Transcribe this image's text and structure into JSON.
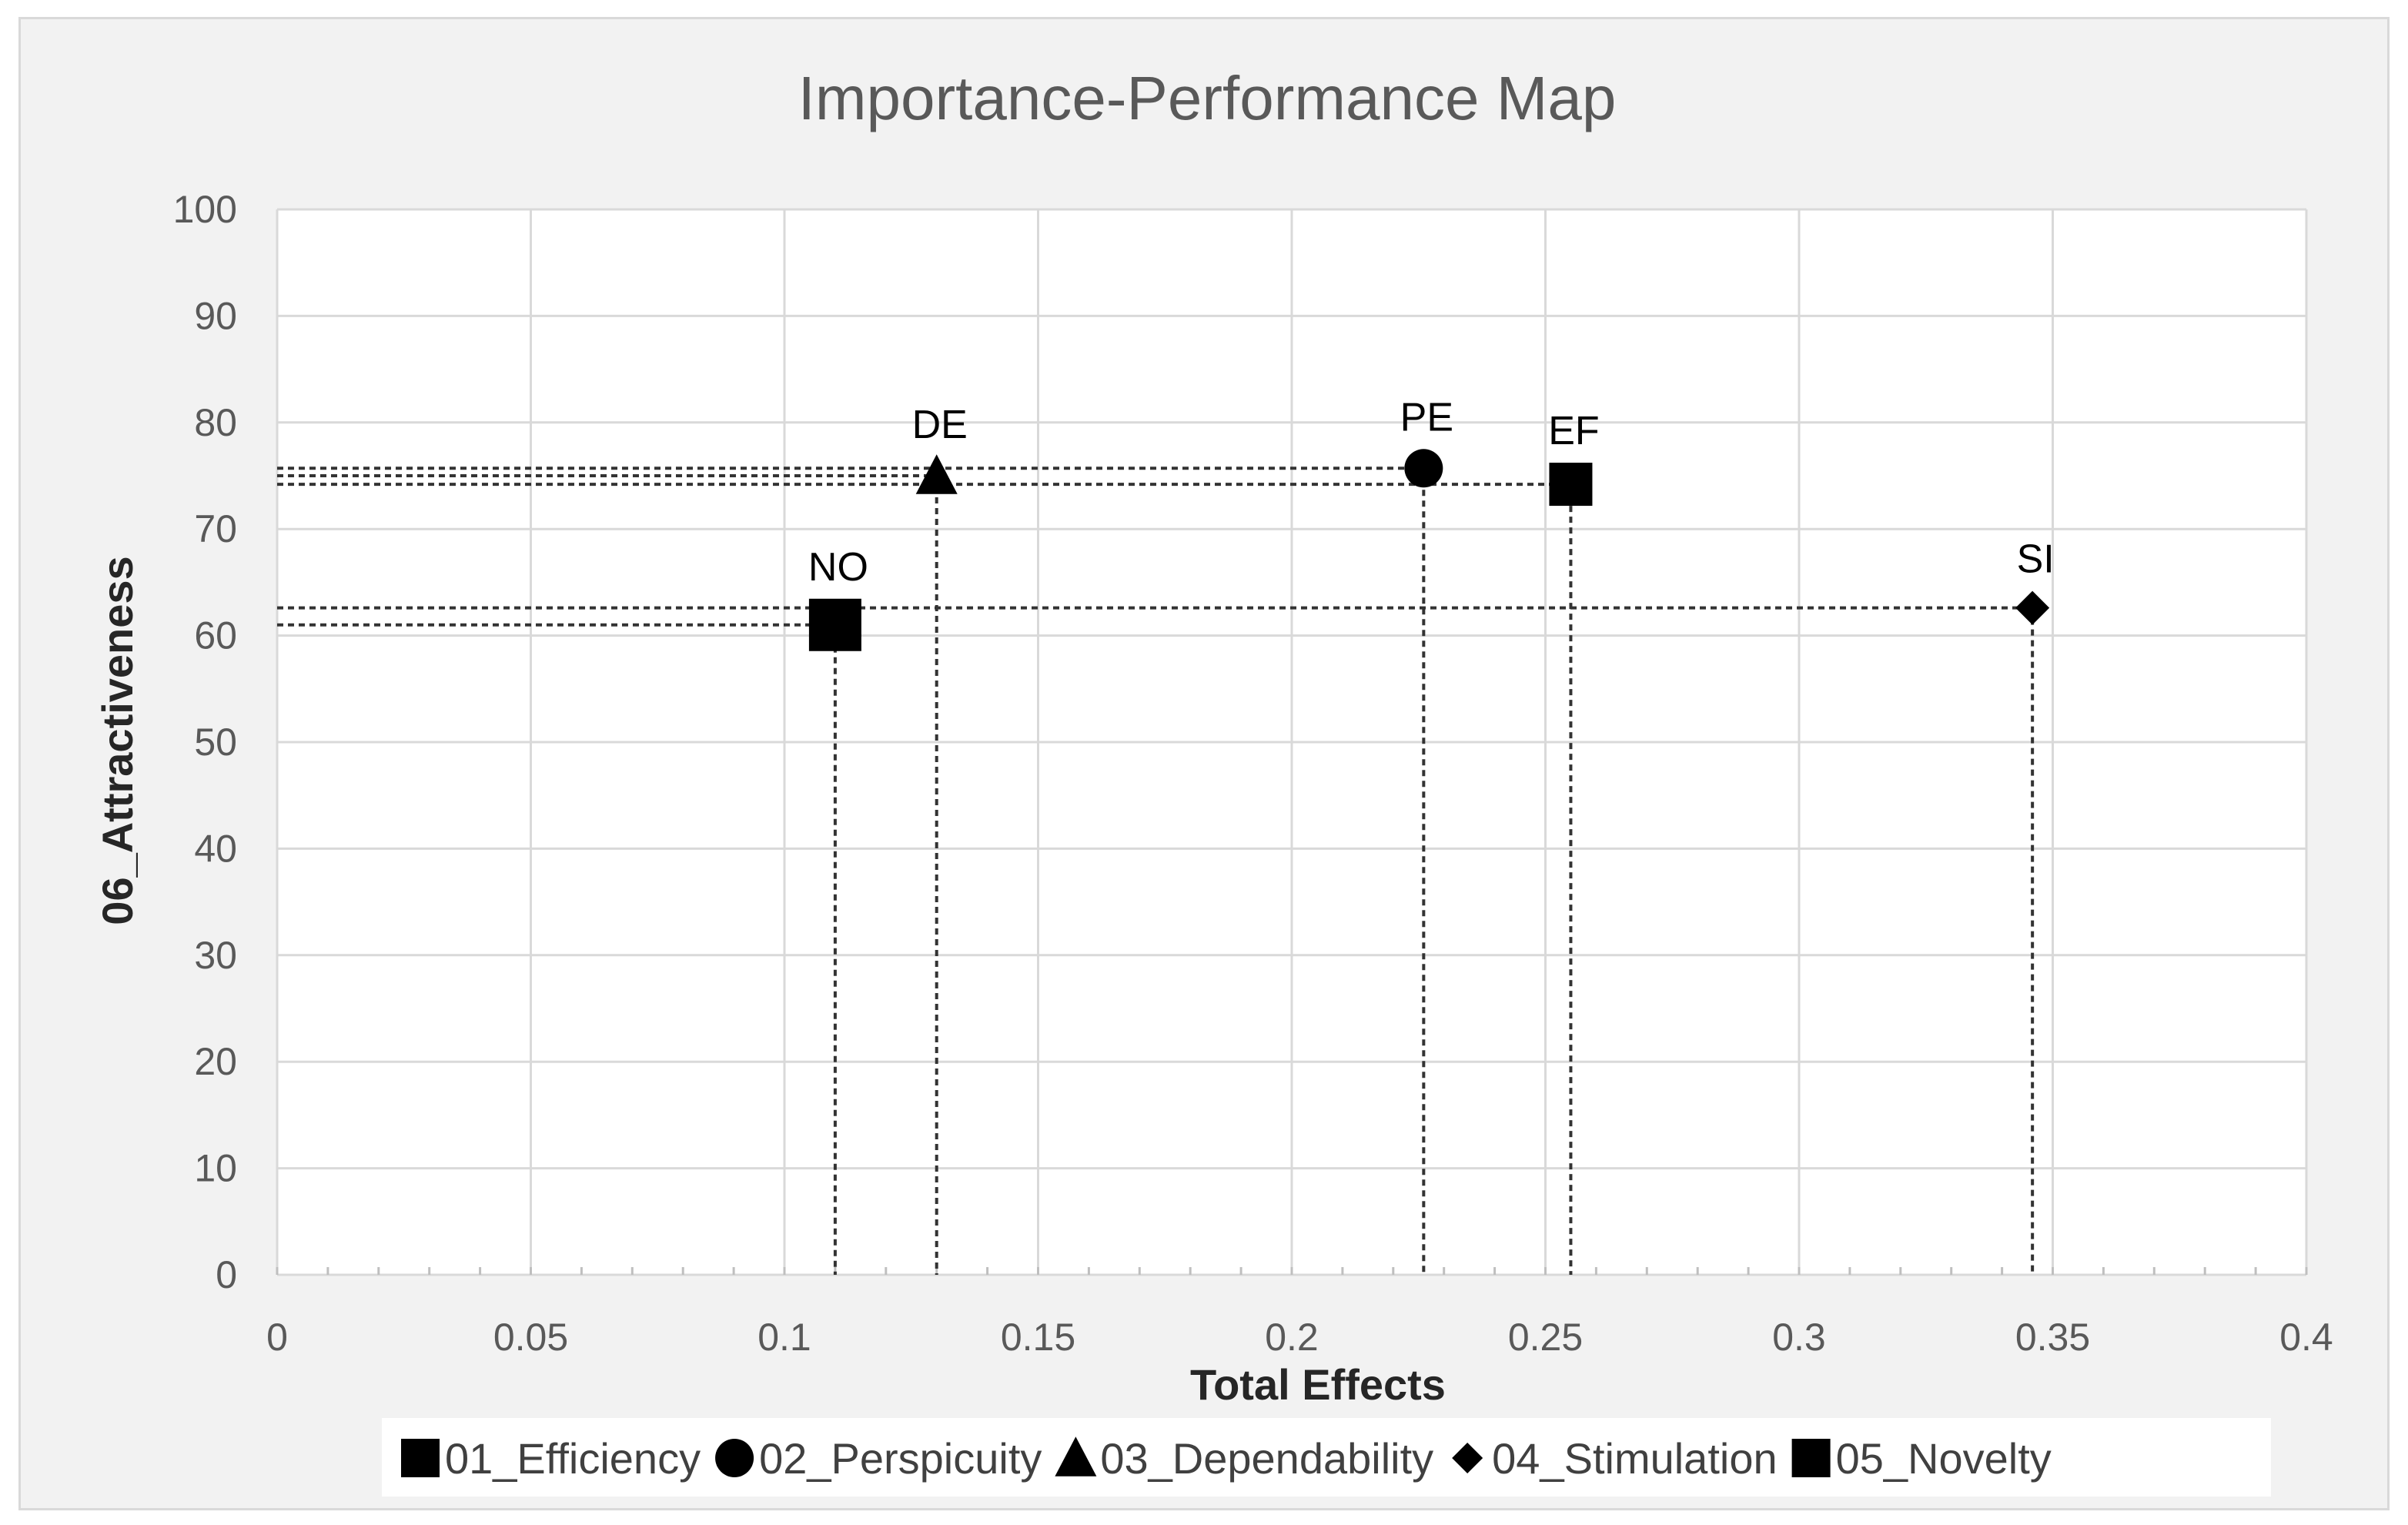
{
  "chart_data": {
    "type": "scatter",
    "title": "Importance-Performance Map",
    "xlabel": "Total Effects",
    "ylabel": "06_Attractiveness",
    "xlim": [
      0,
      0.4
    ],
    "ylim": [
      0,
      100
    ],
    "x_ticks": [
      "0",
      "0.05",
      "0.1",
      "0.15",
      "0.2",
      "0.25",
      "0.3",
      "0.35",
      "0.4"
    ],
    "y_ticks": [
      "0",
      "10",
      "20",
      "30",
      "40",
      "50",
      "60",
      "70",
      "80",
      "90",
      "100"
    ],
    "grid": true,
    "legend_position": "bottom",
    "series": [
      {
        "name": "01_Efficiency",
        "label": "EF",
        "marker": "square",
        "x": 0.255,
        "y": 74.2
      },
      {
        "name": "02_Perspicuity",
        "label": "PE",
        "marker": "circle",
        "x": 0.226,
        "y": 75.7
      },
      {
        "name": "03_Dependability",
        "label": "DE",
        "marker": "triangle",
        "x": 0.13,
        "y": 75.0
      },
      {
        "name": "04_Stimulation",
        "label": "SI",
        "marker": "diamond",
        "x": 0.346,
        "y": 62.6
      },
      {
        "name": "05_Novelty",
        "label": "NO",
        "marker": "square",
        "x": 0.11,
        "y": 61.0
      }
    ],
    "colors": {
      "background": "#f2f2f2",
      "plot": "#ffffff",
      "grid": "#d9d9d9",
      "marker": "#000000",
      "text": "#595959"
    }
  }
}
